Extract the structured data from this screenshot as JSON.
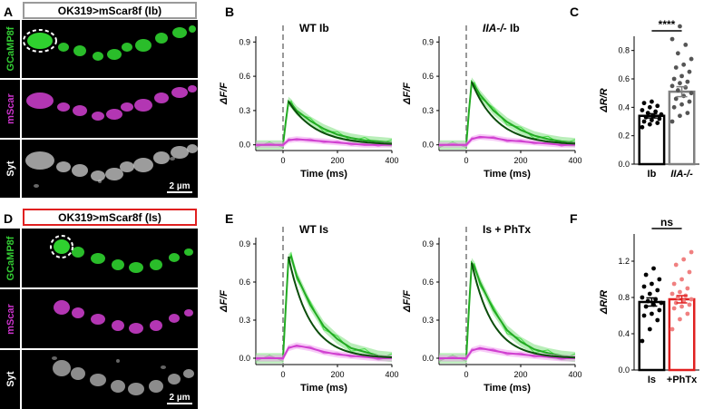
{
  "panel_letters": [
    "A",
    "B",
    "C",
    "D",
    "E",
    "F"
  ],
  "imaging": {
    "top": {
      "header": "OK319>mScar8f (Ib)",
      "header_color": "#9a9a9a",
      "channels": [
        "GCaMP8f",
        "mScar",
        "Syt"
      ],
      "channel_colors": [
        "#33cc33",
        "#cc33cc",
        "#ffffff"
      ],
      "scale_bar": "2 µm"
    },
    "bottom": {
      "header": "OK319>mScar8f (Is)",
      "header_color": "#e02020",
      "channels": [
        "GCaMP8f",
        "mScar",
        "Syt"
      ],
      "channel_colors": [
        "#33cc33",
        "#cc33cc",
        "#ffffff"
      ],
      "scale_bar": "2 µm"
    }
  },
  "chart_data": [
    {
      "type": "line",
      "panel": "B",
      "title": "WT Ib",
      "xlabel": "Time (ms)",
      "ylabel": "ΔF/F",
      "xlim": [
        -100,
        400
      ],
      "ylim": [
        -0.05,
        0.95
      ],
      "xticks": [
        0,
        200,
        400
      ],
      "yticks": [
        0.0,
        0.3,
        0.6,
        0.9
      ],
      "stim_time": 0,
      "peak": 0.38,
      "tau": 100,
      "series": [
        {
          "name": "GCaMP8f",
          "color": "#22aa22",
          "x": [
            -100,
            -50,
            0,
            10,
            20,
            30,
            50,
            100,
            150,
            200,
            250,
            300,
            350,
            400
          ],
          "y": [
            0.0,
            0.0,
            0.0,
            0.2,
            0.38,
            0.36,
            0.3,
            0.21,
            0.14,
            0.09,
            0.06,
            0.04,
            0.03,
            0.02
          ]
        },
        {
          "name": "mScar",
          "color": "#d040d0",
          "x": [
            -100,
            -50,
            0,
            20,
            50,
            100,
            150,
            200,
            250,
            300,
            350,
            400
          ],
          "y": [
            0.0,
            0.0,
            0.0,
            0.04,
            0.05,
            0.04,
            0.03,
            0.02,
            0.01,
            0.0,
            0.0,
            0.0
          ]
        }
      ]
    },
    {
      "type": "line",
      "panel": "B",
      "title": "IIA-/- Ib",
      "xlabel": "Time (ms)",
      "ylabel": "ΔF/F",
      "xlim": [
        -100,
        400
      ],
      "ylim": [
        -0.05,
        0.95
      ],
      "xticks": [
        0,
        200,
        400
      ],
      "yticks": [
        0.0,
        0.3,
        0.6,
        0.9
      ],
      "stim_time": 0,
      "peak": 0.55,
      "tau": 95,
      "series": [
        {
          "name": "GCaMP8f",
          "color": "#22aa22",
          "x": [
            -100,
            -50,
            0,
            10,
            20,
            30,
            50,
            100,
            150,
            200,
            250,
            300,
            350,
            400
          ],
          "y": [
            0.0,
            0.0,
            0.0,
            0.3,
            0.55,
            0.52,
            0.44,
            0.3,
            0.2,
            0.13,
            0.08,
            0.05,
            0.03,
            0.02
          ]
        },
        {
          "name": "mScar",
          "color": "#d040d0",
          "x": [
            -100,
            -50,
            0,
            20,
            50,
            100,
            150,
            200,
            250,
            300,
            350,
            400
          ],
          "y": [
            0.0,
            0.0,
            0.0,
            0.05,
            0.07,
            0.06,
            0.04,
            0.03,
            0.02,
            0.01,
            0.0,
            0.0
          ]
        }
      ]
    },
    {
      "type": "bar",
      "panel": "C",
      "categories": [
        "Ib",
        "IIA-/-"
      ],
      "means": [
        0.34,
        0.51
      ],
      "sems": [
        0.015,
        0.035
      ],
      "bar_colors": [
        "#000000",
        "#808080"
      ],
      "label_colors": [
        "#000000",
        "#9a9a9a"
      ],
      "ylabel": "ΔR/R",
      "ylim": [
        0,
        0.9
      ],
      "yticks": [
        0.0,
        0.2,
        0.4,
        0.6,
        0.8
      ],
      "significance": "****",
      "points": [
        [
          0.26,
          0.28,
          0.29,
          0.3,
          0.31,
          0.32,
          0.33,
          0.34,
          0.35,
          0.36,
          0.37,
          0.38,
          0.4,
          0.41,
          0.43,
          0.44
        ],
        [
          0.3,
          0.34,
          0.36,
          0.4,
          0.42,
          0.44,
          0.46,
          0.48,
          0.5,
          0.52,
          0.54,
          0.55,
          0.57,
          0.58,
          0.6,
          0.62,
          0.65,
          0.68,
          0.7,
          0.74,
          0.78,
          0.84,
          0.88,
          0.97
        ]
      ]
    },
    {
      "type": "line",
      "panel": "E",
      "title": "WT Is",
      "xlabel": "Time (ms)",
      "ylabel": "ΔF/F",
      "xlim": [
        -100,
        400
      ],
      "ylim": [
        -0.05,
        0.95
      ],
      "xticks": [
        0,
        200,
        400
      ],
      "yticks": [
        0.0,
        0.3,
        0.6,
        0.9
      ],
      "stim_time": 0,
      "peak": 0.8,
      "tau": 80,
      "series": [
        {
          "name": "GCaMP8f",
          "color": "#22aa22",
          "x": [
            -100,
            -50,
            0,
            10,
            20,
            30,
            50,
            100,
            150,
            200,
            250,
            300,
            350,
            400
          ],
          "y": [
            0.0,
            0.0,
            0.0,
            0.4,
            0.78,
            0.8,
            0.65,
            0.42,
            0.25,
            0.15,
            0.08,
            0.05,
            0.02,
            0.01
          ]
        },
        {
          "name": "mScar",
          "color": "#d040d0",
          "x": [
            -100,
            -50,
            0,
            20,
            50,
            100,
            150,
            200,
            250,
            300,
            350,
            400
          ],
          "y": [
            0.0,
            0.0,
            0.0,
            0.08,
            0.1,
            0.08,
            0.05,
            0.03,
            0.02,
            0.01,
            0.0,
            0.0
          ]
        }
      ]
    },
    {
      "type": "line",
      "panel": "E",
      "title": "Is + PhTx",
      "xlabel": "Time (ms)",
      "ylabel": "ΔF/F",
      "xlim": [
        -100,
        400
      ],
      "ylim": [
        -0.05,
        0.95
      ],
      "xticks": [
        0,
        200,
        400
      ],
      "yticks": [
        0.0,
        0.3,
        0.6,
        0.9
      ],
      "stim_time": 0,
      "peak": 0.75,
      "tau": 78,
      "series": [
        {
          "name": "GCaMP8f",
          "color": "#22aa22",
          "x": [
            -100,
            -50,
            0,
            10,
            20,
            30,
            50,
            100,
            150,
            200,
            250,
            300,
            350,
            400
          ],
          "y": [
            0.0,
            0.0,
            0.0,
            0.4,
            0.75,
            0.72,
            0.6,
            0.38,
            0.22,
            0.13,
            0.07,
            0.04,
            0.02,
            0.01
          ]
        },
        {
          "name": "mScar",
          "color": "#d040d0",
          "x": [
            -100,
            -50,
            0,
            20,
            50,
            100,
            150,
            200,
            250,
            300,
            350,
            400
          ],
          "y": [
            0.0,
            0.0,
            0.0,
            0.06,
            0.08,
            0.06,
            0.04,
            0.03,
            0.02,
            0.01,
            0.0,
            0.0
          ]
        }
      ]
    },
    {
      "type": "bar",
      "panel": "F",
      "categories": [
        "Is",
        "+PhTx"
      ],
      "means": [
        0.75,
        0.78
      ],
      "sems": [
        0.045,
        0.04
      ],
      "bar_colors": [
        "#000000",
        "#e02020"
      ],
      "label_colors": [
        "#000000",
        "#e02020"
      ],
      "point_colors": [
        "#000000",
        "#f08080"
      ],
      "ylabel": "ΔR/R",
      "ylim": [
        0,
        1.5
      ],
      "yticks": [
        0.0,
        0.4,
        0.8,
        1.2
      ],
      "significance": "ns",
      "points": [
        [
          0.32,
          0.45,
          0.55,
          0.6,
          0.62,
          0.66,
          0.7,
          0.72,
          0.74,
          0.76,
          0.78,
          0.8,
          0.84,
          0.88,
          0.92,
          0.95,
          1.0,
          1.05,
          1.12
        ],
        [
          0.45,
          0.56,
          0.62,
          0.68,
          0.7,
          0.72,
          0.74,
          0.76,
          0.78,
          0.8,
          0.82,
          0.84,
          0.86,
          0.9,
          0.95,
          1.0,
          1.08,
          1.16,
          1.22,
          1.3
        ]
      ]
    }
  ]
}
